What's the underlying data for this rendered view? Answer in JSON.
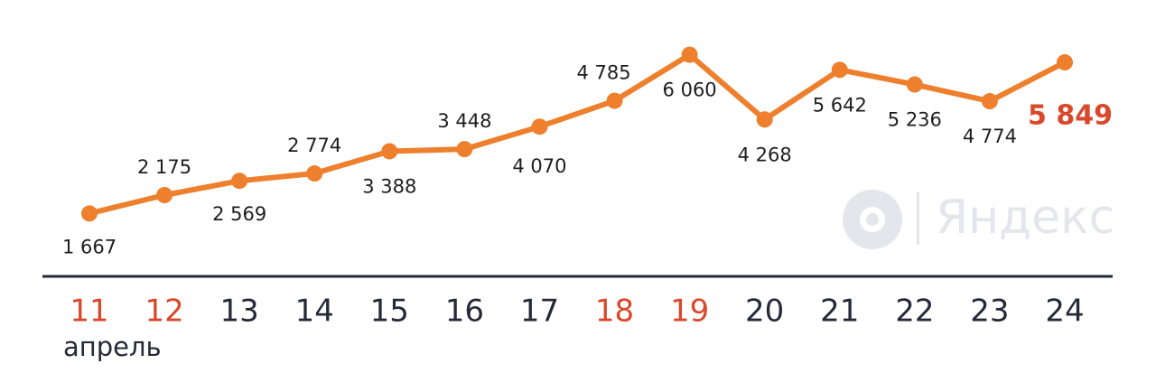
{
  "chart_data": {
    "type": "line",
    "categories": [
      "11",
      "12",
      "13",
      "14",
      "15",
      "16",
      "17",
      "18",
      "19",
      "20",
      "21",
      "22",
      "23",
      "24"
    ],
    "category_colors": [
      "#d9482b",
      "#d9482b",
      "#262a38",
      "#262a38",
      "#262a38",
      "#262a38",
      "#262a38",
      "#d9482b",
      "#d9482b",
      "#262a38",
      "#262a38",
      "#262a38",
      "#262a38",
      "#262a38"
    ],
    "x_label": "апрель",
    "values": [
      1667,
      2175,
      2569,
      2774,
      3388,
      3448,
      4070,
      4785,
      6060,
      4268,
      5642,
      5236,
      4774,
      5849
    ],
    "value_labels": [
      "1 667",
      "2 175",
      "2 569",
      "2 774",
      "3 388",
      "3 448",
      "4 070",
      "4 785",
      "6 060",
      "4 268",
      "5 642",
      "5 236",
      "4 774",
      "5 849"
    ],
    "color": "#ee7f2d",
    "highlight_color": "#d9482b",
    "ylim": [
      0,
      6500
    ],
    "watermark": "Яндекс"
  }
}
